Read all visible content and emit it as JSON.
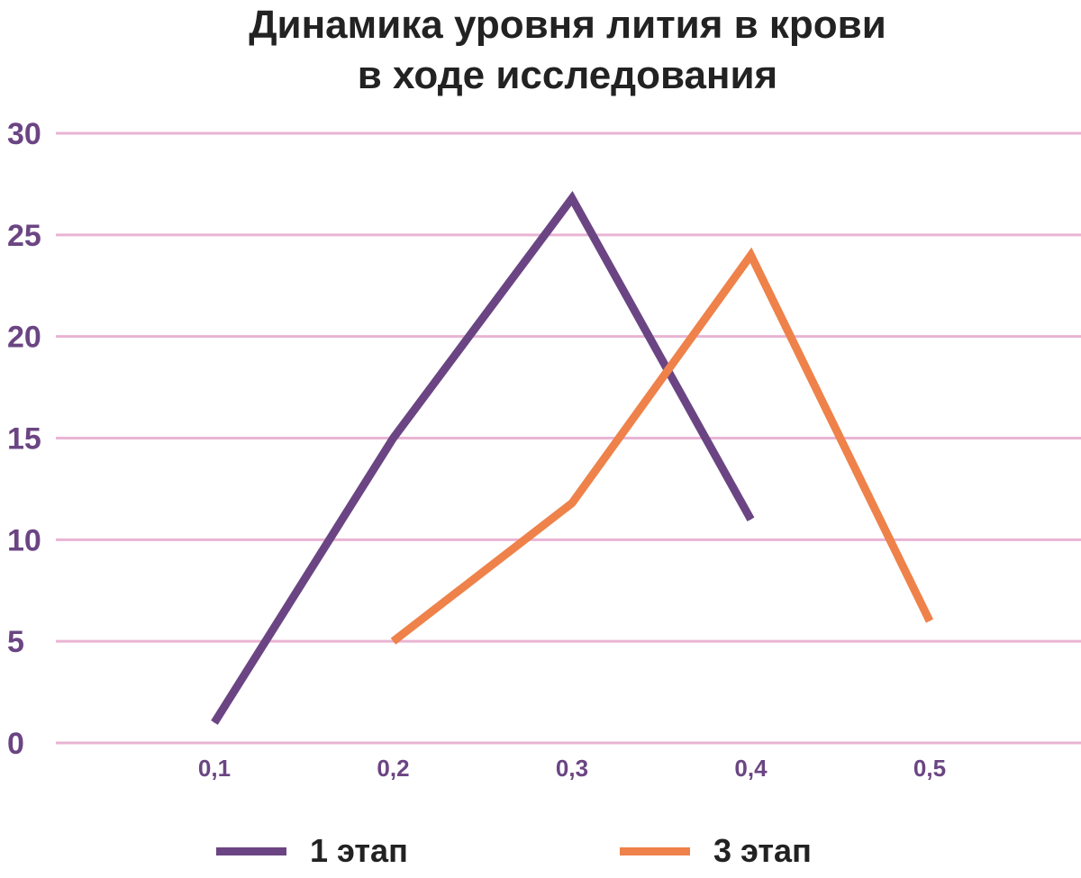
{
  "chart_data": {
    "type": "line",
    "title_lines": [
      "Динамика уровня лития в крови",
      "в ходе исследования"
    ],
    "xlabel": "",
    "ylabel": "",
    "x": [
      "0,1",
      "0,2",
      "0,3",
      "0,4",
      "0,5"
    ],
    "ylim": [
      0,
      30
    ],
    "yticks": [
      30,
      25,
      20,
      15,
      10,
      5,
      0
    ],
    "grid": true,
    "legend_position": "bottom",
    "series": [
      {
        "name": "1 этап",
        "color": "#6b4583",
        "values": [
          1,
          15,
          26.8,
          11,
          null
        ]
      },
      {
        "name": "3 этап",
        "color": "#ee824a",
        "values": [
          null,
          5,
          11.8,
          24,
          6
        ]
      }
    ],
    "colors": {
      "grid": "#e9b4d4",
      "tick_text": "#6b4583",
      "title_text": "#222222"
    }
  }
}
